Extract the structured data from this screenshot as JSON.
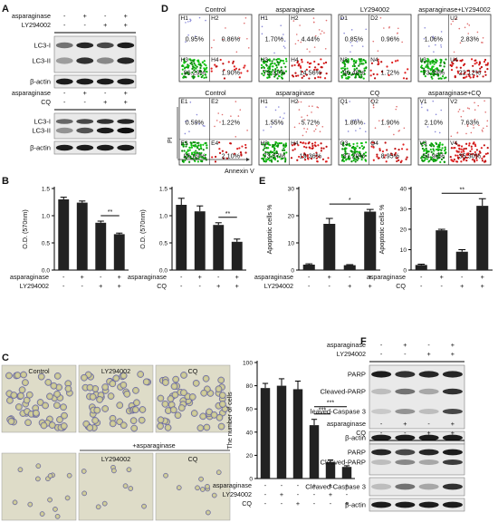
{
  "panels": {
    "A": {
      "label": "A",
      "wb1": {
        "row_labels": [
          "asparaginase",
          "LY294002"
        ],
        "row_signs": [
          [
            "-",
            "+",
            "-",
            "+"
          ],
          [
            "-",
            "-",
            "+",
            "+"
          ]
        ],
        "bands": [
          "LC3-I",
          "LC3-II",
          "β-actin"
        ]
      },
      "wb2": {
        "row_labels": [
          "asparaginase",
          "CQ"
        ],
        "row_signs": [
          [
            "-",
            "+",
            "-",
            "+"
          ],
          [
            "-",
            "-",
            "+",
            "+"
          ]
        ],
        "bands": [
          "LC3-I",
          "LC3-II",
          "β-actin"
        ]
      }
    },
    "B": {
      "label": "B"
    },
    "C": {
      "label": "C",
      "micro_top": [
        "Control",
        "LY294002",
        "CQ"
      ],
      "micro_group": "+asparaginase",
      "micro_bottom": [
        "LY294002",
        "CQ"
      ]
    },
    "D": {
      "label": "D",
      "y_axis": "PI",
      "x_axis": "Annexin V",
      "row1": [
        {
          "title": "Control",
          "ul": "0.95%",
          "ur": "0.86%",
          "ll": "96.29%",
          "lr": "1.90%",
          "q": [
            "H1",
            "H2",
            "H3",
            "H4"
          ]
        },
        {
          "title": "asparaginase",
          "ul": "1.70%",
          "ur": "4.44%",
          "ll": "79.31%",
          "lr": "14.56%",
          "q": [
            "H1",
            "H2",
            "H3",
            "H4"
          ]
        },
        {
          "title": "LY294002",
          "ul": "0.85%",
          "ur": "0.96%",
          "ll": "96.48%",
          "lr": "1.72%",
          "q": [
            "D1",
            "D2",
            "N3",
            "N4"
          ]
        },
        {
          "title": "asparaginase+LY294002",
          "ul": "1.06%",
          "ur": "2.83%",
          "ll": "73.99%",
          "lr": "22.12%",
          "q": [
            "",
            "U2",
            "L3",
            "U4"
          ]
        }
      ],
      "row2": [
        {
          "title": "Control",
          "ul": "0.59%",
          "ur": "1.22%",
          "ll": "96.09%",
          "lr": "2.10%",
          "q": [
            "E1",
            "E2",
            "E3",
            "E4"
          ]
        },
        {
          "title": "asparaginase",
          "ul": "1.55%",
          "ur": "5.72%",
          "ll": "73.37%",
          "lr": "19.36%",
          "q": [
            "H1",
            "H2",
            "H3",
            "H4"
          ]
        },
        {
          "title": "CQ",
          "ul": "1.86%",
          "ur": "1.90%",
          "ll": "87.29%",
          "lr": "8.95%",
          "q": [
            "Q1",
            "Q2",
            "Q3",
            "Q4"
          ]
        },
        {
          "title": "asparaginase+CQ",
          "ul": "2.10%",
          "ur": "7.63%",
          "ll": "54.96%",
          "lr": "35.30%",
          "q": [
            "V1",
            "V2",
            "V3",
            "V4"
          ]
        }
      ]
    },
    "E": {
      "label": "E"
    },
    "F": {
      "label": "F",
      "wb1": {
        "row_labels": [
          "asparaginase",
          "LY294002"
        ],
        "row_signs": [
          [
            "-",
            "+",
            "-",
            "+"
          ],
          [
            "-",
            "-",
            "+",
            "+"
          ]
        ],
        "bands": [
          "PARP",
          "Cleaved-PARP",
          "leaved-Caspase 3",
          "β-actin"
        ]
      },
      "wb2": {
        "row_labels": [
          "asparaginase",
          "CQ"
        ],
        "row_signs": [
          [
            "-",
            "+",
            "-",
            "+"
          ],
          [
            "-",
            "-",
            "+",
            "+"
          ]
        ],
        "bands": [
          "PARP",
          "Cleaved-PARP",
          "Cleaved-Caspase 3",
          "β-actin"
        ]
      }
    }
  },
  "chart_data": [
    {
      "id": "B1",
      "type": "bar",
      "ylabel": "O.D. (570nm)",
      "ylim": [
        0,
        1.5
      ],
      "yticks": [
        "0.0",
        "0.5",
        "1.0",
        "1.5"
      ],
      "values": [
        1.3,
        1.24,
        0.87,
        0.66
      ],
      "errors": [
        0.04,
        0.03,
        0.03,
        0.02
      ],
      "row_labels": [
        "asparaginase",
        "LY294002"
      ],
      "row_signs": [
        [
          "-",
          "+",
          "-",
          "+"
        ],
        [
          "-",
          "-",
          "+",
          "+"
        ]
      ],
      "sig": [
        {
          "from": 2,
          "to": 3,
          "text": "**"
        }
      ]
    },
    {
      "id": "B2",
      "type": "bar",
      "ylabel": "O.D. (570nm)",
      "ylim": [
        0,
        1.5
      ],
      "yticks": [
        "0.0",
        "0.5",
        "1.0",
        "1.5"
      ],
      "values": [
        1.2,
        1.08,
        0.83,
        0.52
      ],
      "errors": [
        0.12,
        0.1,
        0.04,
        0.05
      ],
      "row_labels": [
        "asparaginase",
        "CQ"
      ],
      "row_signs": [
        [
          "-",
          "+",
          "-",
          "+"
        ],
        [
          "-",
          "-",
          "+",
          "+"
        ]
      ],
      "sig": [
        {
          "from": 2,
          "to": 3,
          "text": "**"
        }
      ]
    },
    {
      "id": "E1",
      "type": "bar",
      "ylabel": "Apoptotic cells %",
      "ylim": [
        0,
        30
      ],
      "yticks": [
        "0",
        "10",
        "20",
        "30"
      ],
      "values": [
        2.0,
        17.0,
        1.8,
        21.5
      ],
      "errors": [
        0.3,
        2.0,
        0.2,
        0.8
      ],
      "row_labels": [
        "asparaginase",
        "LY294002"
      ],
      "row_signs": [
        [
          "-",
          "+",
          "-",
          "+"
        ],
        [
          "-",
          "-",
          "+",
          "+"
        ]
      ],
      "sig": [
        {
          "from": 1,
          "to": 3,
          "text": "*"
        }
      ]
    },
    {
      "id": "E2",
      "type": "bar",
      "ylabel": "Apoptotic cells %",
      "ylim": [
        0,
        40
      ],
      "yticks": [
        "0",
        "10",
        "20",
        "30",
        "40"
      ],
      "values": [
        2.5,
        19.5,
        9.0,
        31.5
      ],
      "errors": [
        0.4,
        0.5,
        1.0,
        3.5
      ],
      "row_labels": [
        "asparaginase",
        "CQ"
      ],
      "row_signs": [
        [
          "-",
          "+",
          "-",
          "+"
        ],
        [
          "-",
          "-",
          "+",
          "+"
        ]
      ],
      "sig": [
        {
          "from": 1,
          "to": 3,
          "text": "**"
        }
      ]
    },
    {
      "id": "C1",
      "type": "bar",
      "ylabel": "The number of cells",
      "ylim": [
        0,
        100
      ],
      "yticks": [
        "0",
        "20",
        "40",
        "60",
        "80",
        "100"
      ],
      "values": [
        78,
        80,
        77,
        46,
        14,
        10
      ],
      "errors": [
        4,
        6,
        7,
        5,
        2,
        1
      ],
      "row_labels": [
        "asparaginase",
        "LY294002",
        "CQ"
      ],
      "row_signs": [
        [
          "-",
          "-",
          "-",
          "+",
          "+",
          "+"
        ],
        [
          "-",
          "+",
          "-",
          "-",
          "+",
          "-"
        ],
        [
          "-",
          "-",
          "+",
          "-",
          "-",
          "+"
        ]
      ],
      "sig": [
        {
          "from": 3,
          "to": 4,
          "text": "***"
        },
        {
          "from": 3,
          "to": 5,
          "text": "***"
        }
      ]
    }
  ]
}
